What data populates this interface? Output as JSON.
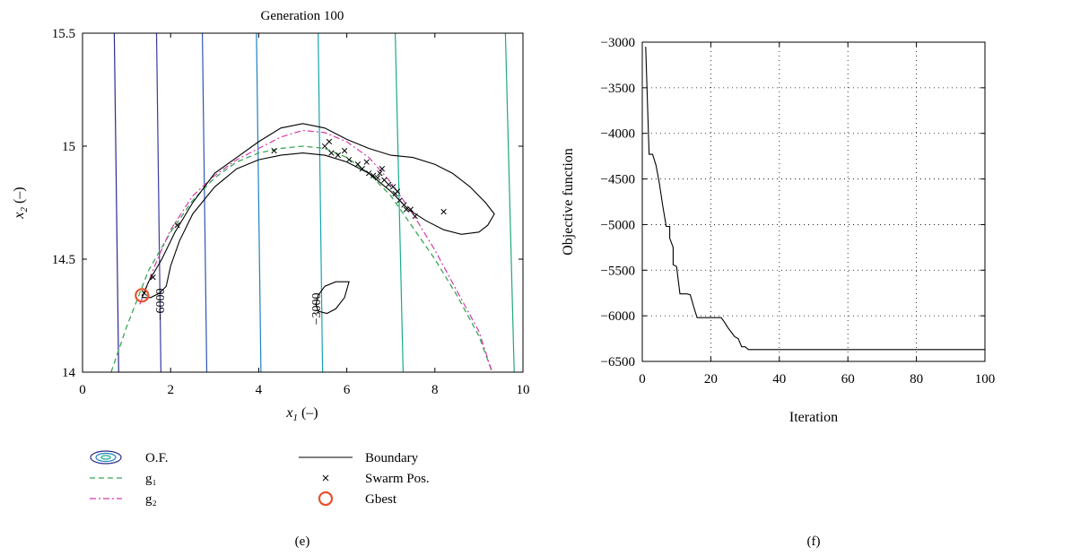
{
  "chart_data": [
    {
      "type": "contour",
      "title": "Generation 100",
      "xlabel": "x",
      "xlabel_sub": "1",
      "xlabel_unit": " (–)",
      "ylabel": "x",
      "ylabel_sub": "2",
      "ylabel_unit": " (–)",
      "xlim": [
        0,
        10
      ],
      "ylim": [
        14,
        15.5
      ],
      "xticks": [
        0,
        2,
        4,
        6,
        8,
        10
      ],
      "yticks": [
        14,
        14.5,
        15,
        15.5
      ],
      "xtick_labels": [
        "0",
        "2",
        "4",
        "6",
        "8",
        "10"
      ],
      "ytick_labels": [
        "14",
        "14.5",
        "15",
        "15.5"
      ],
      "grid": false,
      "contours": [
        {
          "color": "#2b2b8c",
          "points": [
            [
              0.72,
              15.5
            ],
            [
              0.82,
              14.0
            ]
          ]
        },
        {
          "color": "#3a3aa0",
          "points": [
            [
              1.68,
              15.5
            ],
            [
              1.78,
              14.0
            ]
          ]
        },
        {
          "color": "#2d56b0",
          "points": [
            [
              2.72,
              15.5
            ],
            [
              2.82,
              14.0
            ]
          ]
        },
        {
          "color": "#1f82c0",
          "points": [
            [
              3.95,
              15.5
            ],
            [
              4.05,
              14.0
            ]
          ]
        },
        {
          "color": "#17a3b2",
          "points": [
            [
              5.35,
              15.5
            ],
            [
              5.45,
              14.0
            ]
          ]
        },
        {
          "color": "#1aab8a",
          "points": [
            [
              7.1,
              15.5
            ],
            [
              7.28,
              14.0
            ]
          ]
        },
        {
          "color": "#22a878",
          "points": [
            [
              9.6,
              15.5
            ],
            [
              9.8,
              14.0
            ]
          ]
        }
      ],
      "contour_labels": [
        {
          "text": "−6000",
          "x": 1.85,
          "y": 14.3
        },
        {
          "text": "−3000",
          "x": 5.4,
          "y": 14.28
        }
      ],
      "g1": {
        "color": "#3aa655",
        "points": [
          [
            0.65,
            14.0
          ],
          [
            1.0,
            14.2
          ],
          [
            1.5,
            14.45
          ],
          [
            2.0,
            14.62
          ],
          [
            2.5,
            14.76
          ],
          [
            3.0,
            14.86
          ],
          [
            3.5,
            14.93
          ],
          [
            4.0,
            14.97
          ],
          [
            4.5,
            14.99
          ],
          [
            5.0,
            15.0
          ],
          [
            5.5,
            14.99
          ],
          [
            6.0,
            14.95
          ],
          [
            6.5,
            14.88
          ],
          [
            7.0,
            14.78
          ],
          [
            7.5,
            14.64
          ],
          [
            8.0,
            14.5
          ],
          [
            8.5,
            14.34
          ],
          [
            9.0,
            14.16
          ],
          [
            9.3,
            14.0
          ]
        ]
      },
      "g2": {
        "color": "#d23aa8",
        "points": [
          [
            1.3,
            14.3
          ],
          [
            1.7,
            14.5
          ],
          [
            2.0,
            14.63
          ],
          [
            2.5,
            14.78
          ],
          [
            3.0,
            14.87
          ],
          [
            3.5,
            14.94
          ],
          [
            4.0,
            14.99
          ],
          [
            4.5,
            15.04
          ],
          [
            5.0,
            15.07
          ],
          [
            5.5,
            15.06
          ],
          [
            6.0,
            15.02
          ],
          [
            6.5,
            14.95
          ],
          [
            7.0,
            14.84
          ],
          [
            7.5,
            14.7
          ],
          [
            8.0,
            14.54
          ],
          [
            8.5,
            14.36
          ],
          [
            9.0,
            14.18
          ],
          [
            9.3,
            14.0
          ]
        ]
      },
      "boundaries": [
        {
          "closed": true,
          "points": [
            [
              1.35,
              14.33
            ],
            [
              1.5,
              14.4
            ],
            [
              1.8,
              14.5
            ],
            [
              2.1,
              14.62
            ],
            [
              2.5,
              14.75
            ],
            [
              3.0,
              14.88
            ],
            [
              3.5,
              14.95
            ],
            [
              4.0,
              15.02
            ],
            [
              4.5,
              15.08
            ],
            [
              5.0,
              15.1
            ],
            [
              5.5,
              15.08
            ],
            [
              6.0,
              15.03
            ],
            [
              6.5,
              14.99
            ],
            [
              7.0,
              14.96
            ],
            [
              7.5,
              14.95
            ],
            [
              8.0,
              14.92
            ],
            [
              8.4,
              14.88
            ],
            [
              8.8,
              14.82
            ],
            [
              9.15,
              14.75
            ],
            [
              9.35,
              14.7
            ],
            [
              9.2,
              14.65
            ],
            [
              9.0,
              14.62
            ],
            [
              8.6,
              14.61
            ],
            [
              8.2,
              14.63
            ],
            [
              7.8,
              14.67
            ],
            [
              7.4,
              14.72
            ],
            [
              7.0,
              14.8
            ],
            [
              6.5,
              14.88
            ],
            [
              6.0,
              14.93
            ],
            [
              5.5,
              14.96
            ],
            [
              5.0,
              14.97
            ],
            [
              4.5,
              14.96
            ],
            [
              4.0,
              14.94
            ],
            [
              3.5,
              14.9
            ],
            [
              3.0,
              14.82
            ],
            [
              2.5,
              14.7
            ],
            [
              2.2,
              14.58
            ],
            [
              2.0,
              14.47
            ],
            [
              1.9,
              14.38
            ],
            [
              1.75,
              14.35
            ],
            [
              1.55,
              14.33
            ]
          ]
        },
        {
          "closed": true,
          "points": [
            [
              5.3,
              14.3
            ],
            [
              5.35,
              14.34
            ],
            [
              5.5,
              14.38
            ],
            [
              5.75,
              14.4
            ],
            [
              6.05,
              14.4
            ],
            [
              5.95,
              14.33
            ],
            [
              5.75,
              14.28
            ],
            [
              5.55,
              14.26
            ],
            [
              5.35,
              14.27
            ]
          ]
        }
      ],
      "swarm": [
        [
          1.4,
          14.35
        ],
        [
          1.6,
          14.42
        ],
        [
          2.15,
          14.65
        ],
        [
          4.35,
          14.98
        ],
        [
          5.5,
          15.0
        ],
        [
          5.6,
          15.02
        ],
        [
          5.65,
          14.97
        ],
        [
          5.8,
          14.96
        ],
        [
          5.95,
          14.98
        ],
        [
          6.05,
          14.94
        ],
        [
          6.25,
          14.92
        ],
        [
          6.35,
          14.9
        ],
        [
          6.45,
          14.93
        ],
        [
          6.5,
          14.88
        ],
        [
          6.6,
          14.87
        ],
        [
          6.7,
          14.86
        ],
        [
          6.75,
          14.88
        ],
        [
          6.8,
          14.9
        ],
        [
          6.85,
          14.85
        ],
        [
          6.95,
          14.83
        ],
        [
          7.05,
          14.82
        ],
        [
          7.1,
          14.79
        ],
        [
          7.15,
          14.8
        ],
        [
          7.2,
          14.76
        ],
        [
          7.3,
          14.74
        ],
        [
          7.35,
          14.72
        ],
        [
          7.45,
          14.72
        ],
        [
          7.55,
          14.69
        ],
        [
          8.2,
          14.71
        ]
      ],
      "gbest": {
        "x": 1.35,
        "y": 14.34,
        "color": "#e8502a"
      },
      "legend": [
        {
          "label": "O.F.",
          "kind": "contour-icon"
        },
        {
          "label": "g₁",
          "kind": "dashed",
          "color": "#3aa655"
        },
        {
          "label": "g₂",
          "kind": "dashdot",
          "color": "#d23aa8"
        },
        {
          "label": "Boundary",
          "kind": "line",
          "color": "#000000"
        },
        {
          "label": "Swarm Pos.",
          "kind": "cross",
          "color": "#000000"
        },
        {
          "label": "Gbest",
          "kind": "circle",
          "color": "#e8502a"
        }
      ],
      "caption": "(e)"
    },
    {
      "type": "line",
      "title": "",
      "xlabel": "Iteration",
      "ylabel": "Objective function",
      "xlim": [
        0,
        100
      ],
      "ylim": [
        -6500,
        -3000
      ],
      "xticks": [
        0,
        20,
        40,
        60,
        80,
        100
      ],
      "yticks": [
        -3000,
        -3500,
        -4000,
        -4500,
        -5000,
        -5500,
        -6000,
        -6500
      ],
      "xtick_labels": [
        "0",
        "20",
        "40",
        "60",
        "80",
        "100"
      ],
      "ytick_labels": [
        "−3000",
        "−3500",
        "−4000",
        "−4500",
        "−5000",
        "−5500",
        "−6000",
        "−6500"
      ],
      "grid": true,
      "series": [
        {
          "color": "#000000",
          "x": [
            1,
            2,
            2,
            3,
            4,
            5,
            6,
            7,
            7,
            8,
            8,
            9,
            9,
            10,
            11,
            11,
            13,
            14,
            15,
            16,
            17,
            23,
            24,
            25,
            26,
            27,
            28,
            29,
            30,
            31,
            32,
            100
          ],
          "y": [
            -3050,
            -4230,
            -4230,
            -4230,
            -4350,
            -4550,
            -4800,
            -5020,
            -5020,
            -5020,
            -5150,
            -5250,
            -5440,
            -5460,
            -5760,
            -5760,
            -5760,
            -5770,
            -5900,
            -6020,
            -6020,
            -6020,
            -6070,
            -6130,
            -6180,
            -6230,
            -6250,
            -6340,
            -6340,
            -6370,
            -6370,
            -6370
          ]
        }
      ],
      "caption": "(f)"
    }
  ]
}
